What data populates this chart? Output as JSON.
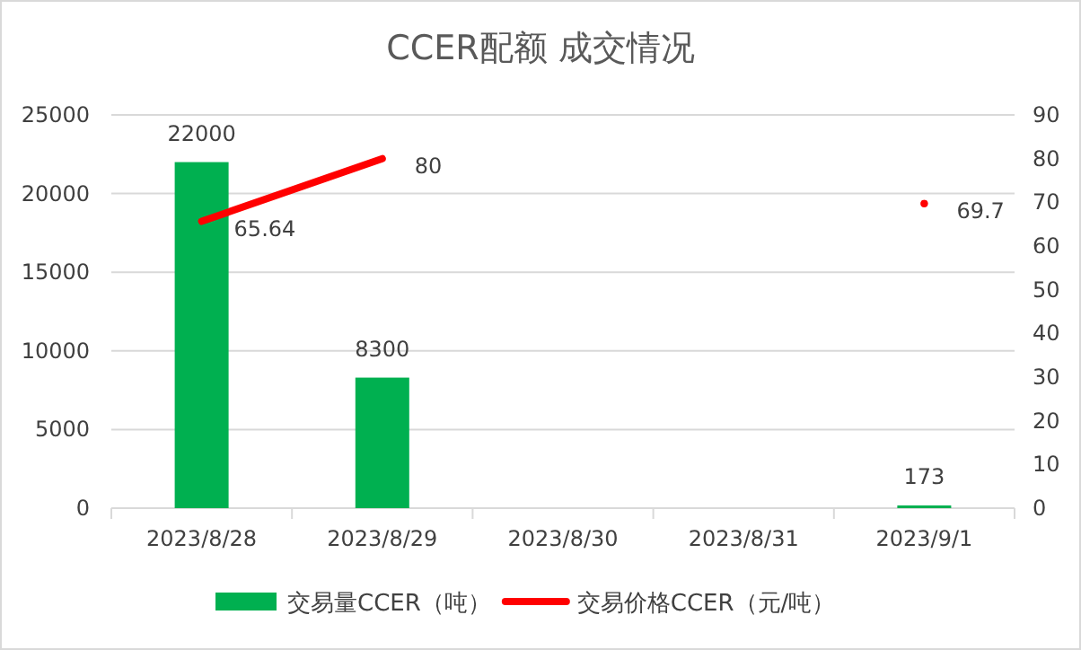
{
  "chart_data": {
    "type": "bar",
    "title": "CCER配额 成交情况",
    "categories": [
      "2023/8/28",
      "2023/8/29",
      "2023/8/30",
      "2023/8/31",
      "2023/9/1"
    ],
    "series": [
      {
        "name": "交易量CCER（吨）",
        "color": "#00b050",
        "values": [
          22000,
          8300,
          null,
          null,
          173
        ]
      },
      {
        "name": "交易价格CCER（元/吨）",
        "type": "line",
        "axis": "y2",
        "color": "#ff0000",
        "values": [
          65.64,
          80,
          null,
          null,
          69.7
        ]
      }
    ],
    "ylim": [
      0,
      25000
    ],
    "yticks": [
      0,
      5000,
      10000,
      15000,
      20000,
      25000
    ],
    "y2lim": [
      0,
      90
    ],
    "y2ticks": [
      0,
      10,
      20,
      30,
      40,
      50,
      60,
      70,
      80,
      90
    ],
    "grid": "y",
    "legend": "bottom",
    "data_labels": true,
    "marker": "none",
    "line_style": "solid"
  }
}
